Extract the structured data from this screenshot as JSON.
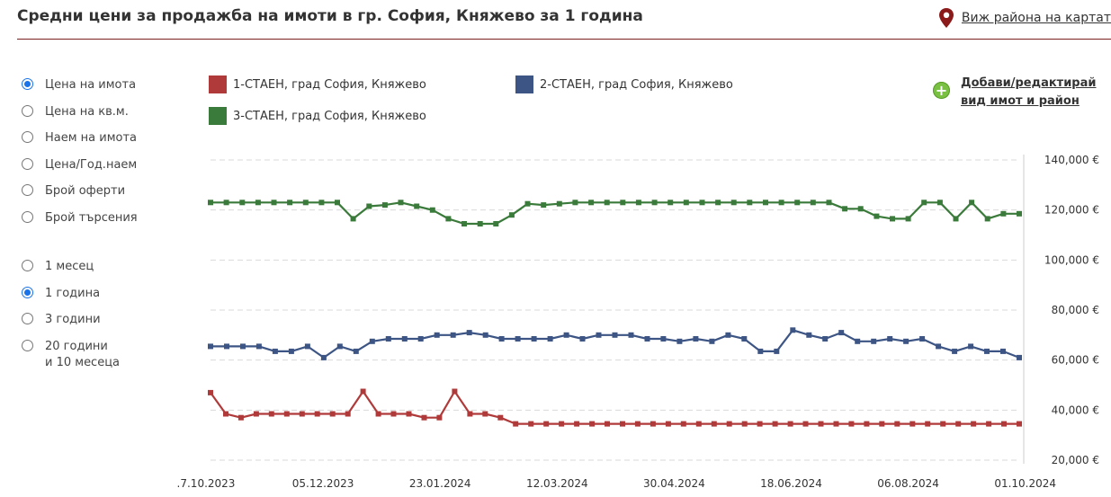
{
  "header": {
    "title": "Средни цени за продажба на имоти в гр. София, Княжево за 1 година",
    "map_link": "Виж района на картат",
    "map_icon": "map-pin-icon",
    "rule_color": "#7a2020"
  },
  "metric_options": [
    {
      "label": "Цена на имота",
      "checked": true
    },
    {
      "label": "Цена на кв.м.",
      "checked": false
    },
    {
      "label": "Наем на имота",
      "checked": false
    },
    {
      "label": "Цена/Год.наем",
      "checked": false
    },
    {
      "label": "Брой оферти",
      "checked": false
    },
    {
      "label": "Брой търсения",
      "checked": false
    }
  ],
  "period_options": [
    {
      "label": "1 месец",
      "checked": false
    },
    {
      "label": "1 година",
      "checked": true
    },
    {
      "label": "3 години",
      "checked": false
    },
    {
      "label": "20 години",
      "label2": "и 10 месеца",
      "checked": false
    }
  ],
  "add_link": {
    "line1": "Добави/редактирай",
    "line2": "вид имот и район",
    "icon": "plus-circle-icon"
  },
  "chart_data": {
    "type": "line",
    "title": "",
    "xlabel": "",
    "ylabel": "",
    "ylim": [
      20000,
      140000
    ],
    "y_ticks": [
      20000,
      40000,
      60000,
      80000,
      100000,
      120000,
      140000
    ],
    "y_tick_labels": [
      "20,000 €",
      "40,000 €",
      "60,000 €",
      "80,000 €",
      "100,000 €",
      "120,000 €",
      "140,000 €"
    ],
    "x_tick_labels": [
      ".7.10.2023",
      "05.12.2023",
      "23.01.2024",
      "12.03.2024",
      "30.04.2024",
      "18.06.2024",
      "06.08.2024",
      "01.10.2024"
    ],
    "grid": "horizontal dashed",
    "legend_position": "top",
    "series": [
      {
        "name": "1-СТАЕН, град София, Княжево",
        "color": "#b03a3a",
        "values": [
          47000,
          38500,
          37000,
          38500,
          38500,
          38500,
          38500,
          38500,
          38500,
          38500,
          47500,
          38500,
          38500,
          38500,
          37000,
          37000,
          47500,
          38500,
          38500,
          37000,
          34500,
          34500,
          34500,
          34500,
          34500,
          34500,
          34500,
          34500,
          34500,
          34500,
          34500,
          34500,
          34500,
          34500,
          34500,
          34500,
          34500,
          34500,
          34500,
          34500,
          34500,
          34500,
          34500,
          34500,
          34500,
          34500,
          34500,
          34500,
          34500,
          34500,
          34500,
          34500,
          34500,
          34500
        ]
      },
      {
        "name": "2-СТАЕН, град София, Княжево",
        "color": "#3d5584",
        "values": [
          65500,
          65500,
          65500,
          65500,
          63500,
          63500,
          65500,
          61000,
          65500,
          63500,
          67500,
          68500,
          68500,
          68500,
          70000,
          70000,
          71000,
          70000,
          68500,
          68500,
          68500,
          68500,
          70000,
          68500,
          70000,
          70000,
          70000,
          68500,
          68500,
          67500,
          68500,
          67500,
          70000,
          68500,
          63500,
          63500,
          72000,
          70000,
          68500,
          71000,
          67500,
          67500,
          68500,
          67500,
          68500,
          65500,
          63500,
          65500,
          63500,
          63500,
          61000
        ]
      },
      {
        "name": "3-СТАЕН, град София, Княжево",
        "color": "#3a7a3a",
        "values": [
          123000,
          123000,
          123000,
          123000,
          123000,
          123000,
          123000,
          123000,
          123000,
          116500,
          121500,
          122000,
          123000,
          121500,
          120000,
          116500,
          114500,
          114500,
          114500,
          118000,
          122500,
          122000,
          122500,
          123000,
          123000,
          123000,
          123000,
          123000,
          123000,
          123000,
          123000,
          123000,
          123000,
          123000,
          123000,
          123000,
          123000,
          123000,
          123000,
          123000,
          120500,
          120500,
          117500,
          116500,
          116500,
          123000,
          123000,
          116500,
          123000,
          116500,
          118500,
          118500
        ]
      }
    ]
  }
}
